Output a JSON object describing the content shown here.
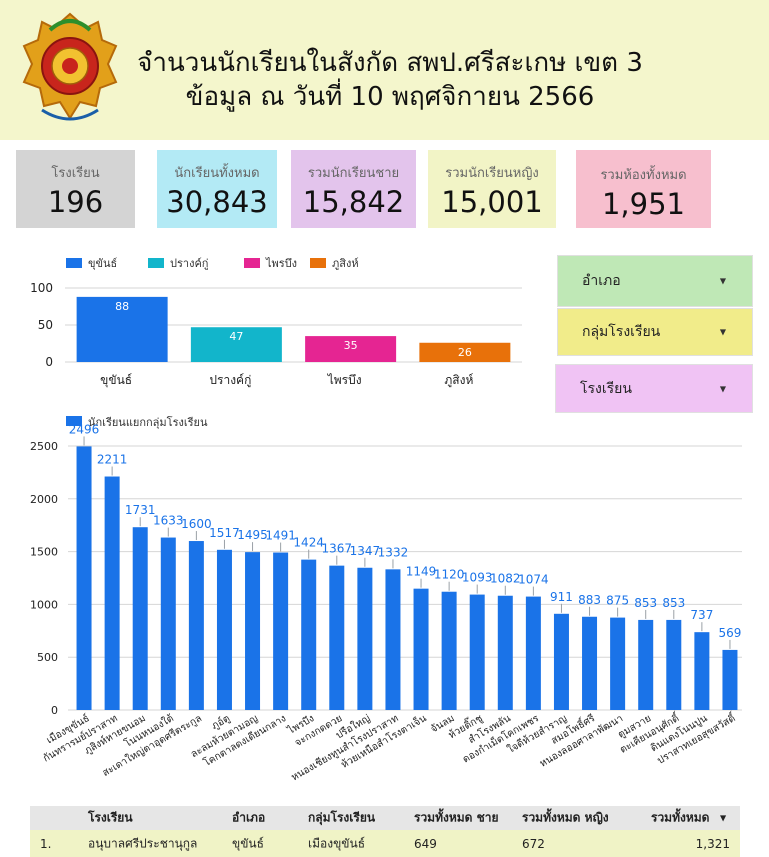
{
  "header": {
    "title_line1": "จำนวนนักเรียนในสังกัด สพป.ศรีสะเกษ เขต 3",
    "title_line2": "ข้อมูล ณ วันที่ 10 พฤศจิกายน 2566"
  },
  "logo": {
    "icon": "education-office-emblem"
  },
  "cards": [
    {
      "label": "โรงเรียน",
      "value": "196"
    },
    {
      "label": "นักเรียนทั้งหมด",
      "value": "30,843"
    },
    {
      "label": "รวมนักเรียนชาย",
      "value": "15,842"
    },
    {
      "label": "รวมนักเรียนหญิง",
      "value": "15,001"
    },
    {
      "label": "รวมห้องทั้งหมด",
      "value": "1,951"
    }
  ],
  "filters": [
    {
      "label": "อำเภอ",
      "icon": "caret-down-icon"
    },
    {
      "label": "กลุ่มโรงเรียน",
      "icon": "caret-down-icon"
    },
    {
      "label": "โรงเรียน",
      "icon": "caret-down-icon"
    }
  ],
  "chart_data": [
    {
      "type": "bar",
      "categories": [
        "ขุขันธ์",
        "ปรางค์กู่",
        "ไพรบึง",
        "ภูสิงห์"
      ],
      "values": [
        88,
        47,
        35,
        26
      ],
      "colors": [
        "#1a73e8",
        "#12b5cb",
        "#e52592",
        "#e8710a"
      ],
      "legend": [
        "ขุขันธ์",
        "ปรางค์กู่",
        "ไพรบึง",
        "ภูสิงห์"
      ],
      "legend_position": "top-left",
      "y_ticks": [
        "0",
        "50",
        "100"
      ],
      "ylim": [
        0,
        100
      ],
      "grid": true
    },
    {
      "type": "bar",
      "series_name": "นักเรียนแยกกลุ่มโรงเรียน",
      "legend_position": "top-left",
      "color": "#1a73e8",
      "categories": [
        "เมืองขุขันธ์",
        "กันทรารมย์ปราสาท",
        "ภูสิงห์หายขนอม",
        "โนนหนองใต้",
        "สะเดาใหญ่ตาอุดศรีตระกูล",
        "ภูอ์ตู",
        "ละลมห้วยตามอญ",
        "โคกตาลดงเดียนกลาง",
        "ไพรบึง",
        "จะกงกดดวย",
        "ปรือใหญ่",
        "หนองเชียงทูนสำโรงปราสาท",
        "ห้วยเหนือสำโรงตาเจ็น",
        "จันลม",
        "ห้วยติ๊กชู",
        "สำโรงพลัน",
        "ดองกำเม็ดโคกเพชร",
        "ใจดีห้วยสำราญ",
        "สมอโพธิ์ศรี",
        "หนองลออศาลาพัฒนา",
        "ตูมสวาย",
        "ตะเคียนอนุศักดิ์",
        "ดินแดงโนนปูน",
        "ปราสาทเยอสุขสวัสดิ์"
      ],
      "values": [
        2496,
        2211,
        1731,
        1633,
        1600,
        1517,
        1495,
        1491,
        1424,
        1367,
        1347,
        1332,
        1149,
        1120,
        1093,
        1082,
        1074,
        911,
        883,
        875,
        853,
        853,
        737,
        569
      ],
      "y_ticks": [
        "0",
        "500",
        "1000",
        "1500",
        "2000",
        "2500"
      ],
      "ylim": [
        0,
        2500
      ],
      "grid": true
    }
  ],
  "table": {
    "headers": [
      "โรงเรียน",
      "อำเภอ",
      "กลุ่มโรงเรียน",
      "รวมทั้งหมด ชาย",
      "รวมทั้งหมด หญิง",
      "รวมทั้งหมด"
    ],
    "sort_icon": "sort-down-icon",
    "rows": [
      {
        "index": "1.",
        "school": "อนุบาลศรีประชานุกูล",
        "district": "ขุขันธ์",
        "group": "เมืองขุขันธ์",
        "male": "649",
        "female": "672",
        "total": "1,321"
      }
    ]
  }
}
